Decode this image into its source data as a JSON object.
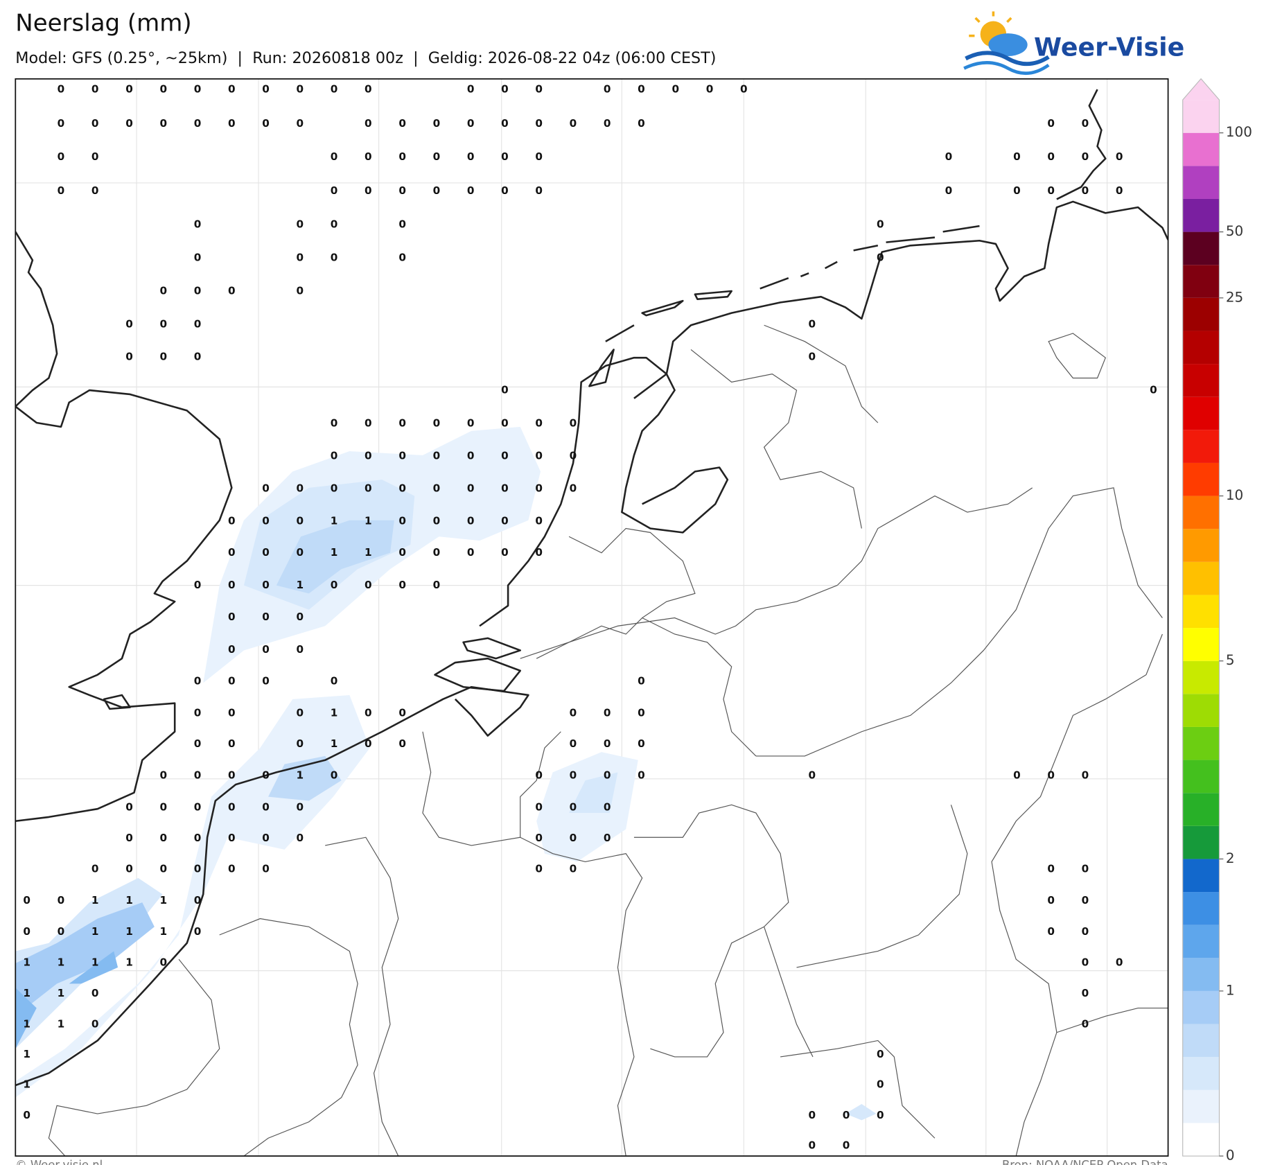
{
  "header": {
    "title": "Neerslag (mm)",
    "subtitle": "Model: GFS (0.25°, ~25km)  |  Run: 20260818 00z  |  Geldig: 2026-08-22 04z (06:00 CEST)"
  },
  "logo": {
    "text": "Weer-Visie"
  },
  "map": {
    "grid": [
      [
        null,
        0,
        0,
        0,
        0,
        0,
        0,
        0,
        0,
        0,
        0,
        null,
        null,
        0,
        0,
        0,
        null,
        0,
        0,
        0,
        0,
        0
      ],
      [
        null,
        0,
        0,
        0,
        0,
        0,
        0,
        0,
        0,
        null,
        0,
        0,
        0,
        0,
        0,
        0,
        0,
        0,
        0,
        null,
        null,
        null,
        null,
        null,
        null,
        null,
        null,
        null,
        null,
        null,
        0,
        0
      ],
      [
        null,
        0,
        0,
        null,
        null,
        null,
        null,
        null,
        null,
        0,
        0,
        0,
        0,
        0,
        0,
        0,
        null,
        null,
        null,
        null,
        null,
        null,
        null,
        null,
        null,
        null,
        null,
        0,
        null,
        0,
        0,
        0,
        0
      ],
      [
        null,
        0,
        0,
        null,
        null,
        null,
        null,
        null,
        null,
        0,
        0,
        0,
        0,
        0,
        0,
        0,
        null,
        null,
        null,
        null,
        null,
        null,
        null,
        null,
        null,
        null,
        null,
        0,
        null,
        0,
        0,
        0,
        0
      ],
      [
        null,
        null,
        null,
        null,
        null,
        0,
        null,
        null,
        0,
        0,
        null,
        0,
        null,
        null,
        null,
        null,
        null,
        null,
        null,
        null,
        null,
        null,
        null,
        null,
        null,
        0
      ],
      [
        null,
        null,
        null,
        null,
        null,
        0,
        null,
        null,
        0,
        0,
        null,
        0,
        null,
        null,
        null,
        null,
        null,
        null,
        null,
        null,
        null,
        null,
        null,
        null,
        null,
        0
      ],
      [
        null,
        null,
        null,
        null,
        0,
        0,
        0,
        null,
        0
      ],
      [
        null,
        null,
        null,
        0,
        0,
        0,
        null,
        null,
        null,
        null,
        null,
        null,
        null,
        null,
        null,
        null,
        null,
        null,
        null,
        null,
        null,
        null,
        null,
        0
      ],
      [
        null,
        null,
        null,
        0,
        0,
        0,
        null,
        null,
        null,
        null,
        null,
        null,
        null,
        null,
        null,
        null,
        null,
        null,
        null,
        null,
        null,
        null,
        null,
        0
      ],
      [
        null,
        null,
        null,
        null,
        null,
        null,
        null,
        null,
        null,
        null,
        null,
        null,
        null,
        null,
        0,
        null,
        null,
        null,
        null,
        null,
        null,
        null,
        null,
        null,
        null,
        null,
        null,
        null,
        null,
        null,
        null,
        null,
        null,
        0
      ],
      [
        null,
        null,
        null,
        null,
        null,
        null,
        null,
        null,
        null,
        0,
        0,
        0,
        0,
        0,
        0,
        0,
        0
      ],
      [
        null,
        null,
        null,
        null,
        null,
        null,
        null,
        null,
        null,
        0,
        0,
        0,
        0,
        0,
        0,
        0,
        0
      ],
      [
        null,
        null,
        null,
        null,
        null,
        null,
        null,
        0,
        0,
        0,
        0,
        0,
        0,
        0,
        0,
        0,
        0
      ],
      [
        null,
        null,
        null,
        null,
        null,
        null,
        0,
        0,
        0,
        1,
        1,
        0,
        0,
        0,
        0,
        0
      ],
      [
        null,
        null,
        null,
        null,
        null,
        null,
        0,
        0,
        0,
        1,
        1,
        0,
        0,
        0,
        0,
        0
      ],
      [
        null,
        null,
        null,
        null,
        null,
        0,
        0,
        0,
        1,
        0,
        0,
        0,
        0
      ],
      [
        null,
        null,
        null,
        null,
        null,
        null,
        0,
        0,
        0
      ],
      [
        null,
        null,
        null,
        null,
        null,
        null,
        0,
        0,
        0
      ],
      [
        null,
        null,
        null,
        null,
        null,
        0,
        0,
        0,
        null,
        0,
        null,
        null,
        null,
        null,
        null,
        null,
        null,
        null,
        0
      ],
      [
        null,
        null,
        null,
        null,
        null,
        0,
        0,
        null,
        0,
        1,
        0,
        0,
        null,
        null,
        null,
        null,
        0,
        0,
        0
      ],
      [
        null,
        null,
        null,
        null,
        null,
        0,
        0,
        null,
        0,
        1,
        0,
        0,
        null,
        null,
        null,
        null,
        0,
        0,
        0
      ],
      [
        null,
        null,
        null,
        null,
        0,
        0,
        0,
        0,
        1,
        0,
        null,
        null,
        null,
        null,
        null,
        0,
        0,
        0,
        0,
        null,
        null,
        null,
        null,
        0,
        null,
        null,
        null,
        null,
        null,
        0,
        0,
        0
      ],
      [
        null,
        null,
        null,
        0,
        0,
        0,
        0,
        0,
        0,
        null,
        null,
        null,
        null,
        null,
        null,
        0,
        0,
        0
      ],
      [
        null,
        null,
        null,
        0,
        0,
        0,
        0,
        0,
        0,
        null,
        null,
        null,
        null,
        null,
        null,
        0,
        0,
        0
      ],
      [
        null,
        null,
        0,
        0,
        0,
        0,
        0,
        0,
        null,
        null,
        null,
        null,
        null,
        null,
        null,
        0,
        0,
        null,
        null,
        null,
        null,
        null,
        null,
        null,
        null,
        null,
        null,
        null,
        null,
        null,
        0,
        0
      ],
      [
        0,
        0,
        1,
        1,
        1,
        0,
        null,
        null,
        null,
        null,
        null,
        null,
        null,
        null,
        null,
        null,
        null,
        null,
        null,
        null,
        null,
        null,
        null,
        null,
        null,
        null,
        null,
        null,
        null,
        null,
        0,
        0
      ],
      [
        0,
        0,
        1,
        1,
        1,
        0,
        null,
        null,
        null,
        null,
        null,
        null,
        null,
        null,
        null,
        null,
        null,
        null,
        null,
        null,
        null,
        null,
        null,
        null,
        null,
        null,
        null,
        null,
        null,
        null,
        0,
        0
      ],
      [
        1,
        1,
        1,
        1,
        0,
        null,
        null,
        null,
        null,
        null,
        null,
        null,
        null,
        null,
        null,
        null,
        null,
        null,
        null,
        null,
        null,
        null,
        null,
        null,
        null,
        null,
        null,
        null,
        null,
        null,
        null,
        0,
        0
      ],
      [
        1,
        1,
        0,
        null,
        null,
        null,
        null,
        null,
        null,
        null,
        null,
        null,
        null,
        null,
        null,
        null,
        null,
        null,
        null,
        null,
        null,
        null,
        null,
        null,
        null,
        null,
        null,
        null,
        null,
        null,
        null,
        0
      ],
      [
        1,
        1,
        0,
        null,
        null,
        null,
        null,
        null,
        null,
        null,
        null,
        null,
        null,
        null,
        null,
        null,
        null,
        null,
        null,
        null,
        null,
        null,
        null,
        null,
        null,
        null,
        null,
        null,
        null,
        null,
        null,
        0
      ],
      [
        1,
        null,
        null,
        null,
        null,
        null,
        null,
        null,
        null,
        null,
        null,
        null,
        null,
        null,
        null,
        null,
        null,
        null,
        null,
        null,
        null,
        null,
        null,
        null,
        null,
        0
      ],
      [
        1,
        null,
        null,
        null,
        null,
        null,
        null,
        null,
        null,
        null,
        null,
        null,
        null,
        null,
        null,
        null,
        null,
        null,
        null,
        null,
        null,
        null,
        null,
        null,
        null,
        0
      ],
      [
        0,
        null,
        null,
        null,
        null,
        null,
        null,
        null,
        null,
        null,
        null,
        null,
        null,
        null,
        null,
        null,
        null,
        null,
        null,
        null,
        null,
        null,
        null,
        0,
        0,
        0
      ],
      [
        null,
        null,
        null,
        null,
        null,
        null,
        null,
        null,
        null,
        null,
        null,
        null,
        null,
        null,
        null,
        null,
        null,
        null,
        null,
        null,
        null,
        null,
        null,
        0,
        0
      ]
    ]
  },
  "colorbar": {
    "levels": [
      0,
      0.1,
      0.25,
      0.5,
      0.75,
      1,
      1.25,
      1.5,
      1.75,
      2,
      2.5,
      3,
      3.5,
      4,
      4.5,
      5,
      6,
      7,
      8,
      9,
      10,
      12,
      14,
      16,
      18,
      20,
      25,
      35,
      50,
      60,
      75,
      100
    ],
    "colors": [
      "#ffffff",
      "#eaf2fc",
      "#d6e8fa",
      "#c0dbf8",
      "#a6ccf6",
      "#84bbf1",
      "#5ea6ec",
      "#3d8fe4",
      "#1268cc",
      "#169a3a",
      "#28b028",
      "#44c01e",
      "#6cce12",
      "#9edc04",
      "#c8ea00",
      "#ffff00",
      "#ffe000",
      "#ffc000",
      "#ff9a00",
      "#ff7000",
      "#ff3c00",
      "#f21a0a",
      "#e00000",
      "#c80000",
      "#b40000",
      "#9c0000",
      "#800010",
      "#5c0020",
      "#7a1fa0",
      "#b040c0",
      "#e870d0",
      "#fbd3ef"
    ],
    "ticks": [
      0,
      1,
      2,
      5,
      10,
      25,
      50,
      100
    ]
  },
  "footer": {
    "copyright": "© Weer-visie.nl",
    "source": "Bron: NOAA/NCEP Open Data"
  }
}
